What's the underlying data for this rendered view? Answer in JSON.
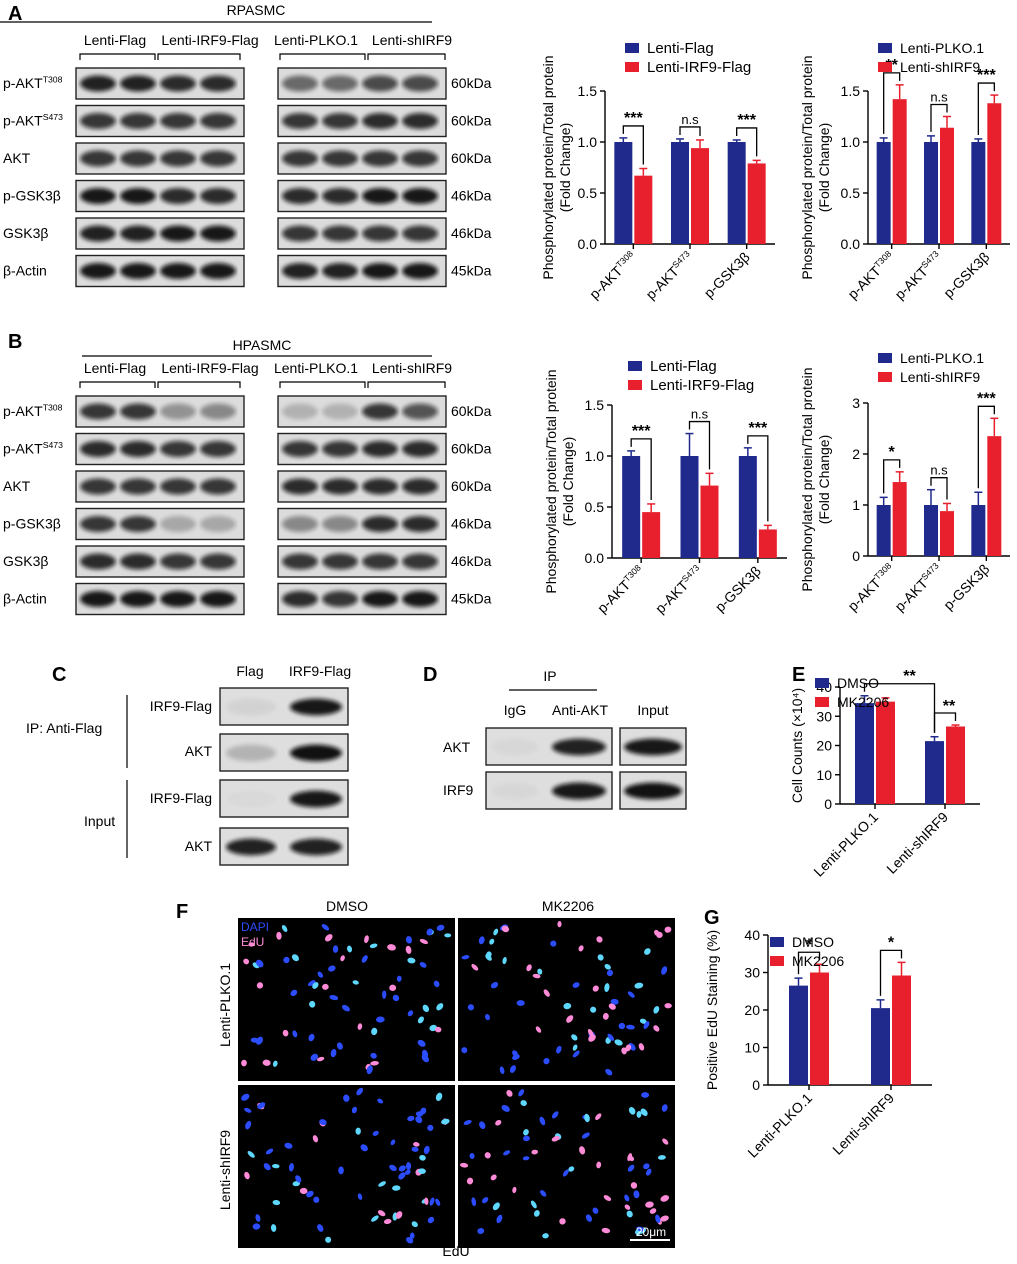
{
  "panels": {
    "A": {
      "letter": "A",
      "cell": "RPASMC",
      "groups": [
        "Lenti-Flag",
        "Lenti-IRF9-Flag",
        "Lenti-PLKO.1",
        "Lenti-shIRF9"
      ]
    },
    "B": {
      "letter": "B",
      "cell": "HPASMC",
      "groups": [
        "Lenti-Flag",
        "Lenti-IRF9-Flag",
        "Lenti-PLKO.1",
        "Lenti-shIRF9"
      ]
    },
    "C": {
      "letter": "C",
      "cols": [
        "Flag",
        "IRF9-Flag"
      ],
      "ip_label": "IP: Anti-Flag",
      "input_label": "Input",
      "rows": [
        "IRF9-Flag",
        "AKT",
        "IRF9-Flag",
        "AKT"
      ]
    },
    "D": {
      "letter": "D",
      "ip": "IP",
      "cols": [
        "IgG",
        "Anti-AKT",
        "Input"
      ],
      "rows": [
        "AKT",
        "IRF9"
      ]
    },
    "E": {
      "letter": "E"
    },
    "F": {
      "letter": "F",
      "cols": [
        "DMSO",
        "MK2206"
      ],
      "rows": [
        "Lenti-PLKO.1",
        "Lenti-shIRF9"
      ],
      "stain1": "DAPI",
      "stain2": "EdU",
      "bottom": "EdU",
      "scale": "20μm"
    },
    "G": {
      "letter": "G"
    }
  },
  "blot_rows": {
    "labels": [
      [
        "p-AKT",
        "T308"
      ],
      [
        "p-AKT",
        "S473"
      ],
      [
        "AKT",
        ""
      ],
      [
        "p-GSK3β",
        ""
      ],
      [
        "GSK3β",
        ""
      ],
      [
        "β-Actin",
        ""
      ]
    ],
    "sizes": [
      "60kDa",
      "60kDa",
      "60kDa",
      "46kDa",
      "46kDa",
      "45kDa"
    ]
  },
  "colors": {
    "blue": "#1f2a8c",
    "red": "#e8202e",
    "dapi": "#2b4dff",
    "edu": "#ff8ad8"
  },
  "chart_data": [
    {
      "id": "A1",
      "type": "bar",
      "ylabel": "Phosphorylated protein/Total protein (Fold Change)",
      "categories": [
        [
          "p-AKT",
          "T308"
        ],
        [
          "p-AKT",
          "S473"
        ],
        [
          "p-GSK3β",
          ""
        ]
      ],
      "ylim": [
        0,
        1.5
      ],
      "ticks": [
        "0.0",
        "0.5",
        "1.0",
        "1.5"
      ],
      "series": [
        {
          "name": "Lenti-Flag",
          "values": [
            1.0,
            1.0,
            1.0
          ],
          "err": [
            0.04,
            0.03,
            0.02
          ]
        },
        {
          "name": "Lenti-IRF9-Flag",
          "values": [
            0.67,
            0.94,
            0.79
          ],
          "err": [
            0.07,
            0.08,
            0.03
          ]
        }
      ],
      "sig": [
        "***",
        "n.s",
        "***"
      ]
    },
    {
      "id": "A2",
      "type": "bar",
      "ylabel": "Phosphorylated protein/Total protein (Fold Change)",
      "categories": [
        [
          "p-AKT",
          "T308"
        ],
        [
          "p-AKT",
          "S473"
        ],
        [
          "p-GSK3β",
          ""
        ]
      ],
      "ylim": [
        0,
        1.5
      ],
      "ticks": [
        "0.0",
        "0.5",
        "1.0",
        "1.5"
      ],
      "series": [
        {
          "name": "Lenti-PLKO.1",
          "values": [
            1.0,
            1.0,
            1.0
          ],
          "err": [
            0.04,
            0.06,
            0.03
          ]
        },
        {
          "name": "Lenti-shIRF9",
          "values": [
            1.42,
            1.14,
            1.38
          ],
          "err": [
            0.14,
            0.11,
            0.08
          ]
        }
      ],
      "sig": [
        "**",
        "n.s",
        "***"
      ]
    },
    {
      "id": "B1",
      "type": "bar",
      "ylabel": "Phosphorylated protein/Total protein (Fold Change)",
      "categories": [
        [
          "p-AKT",
          "T308"
        ],
        [
          "p-AKT",
          "S473"
        ],
        [
          "p-GSK3β",
          ""
        ]
      ],
      "ylim": [
        0,
        1.5
      ],
      "ticks": [
        "0.0",
        "0.5",
        "1.0",
        "1.5"
      ],
      "series": [
        {
          "name": "Lenti-Flag",
          "values": [
            1.0,
            1.0,
            1.0
          ],
          "err": [
            0.05,
            0.22,
            0.08
          ]
        },
        {
          "name": "Lenti-IRF9-Flag",
          "values": [
            0.45,
            0.71,
            0.28
          ],
          "err": [
            0.08,
            0.12,
            0.04
          ]
        }
      ],
      "sig": [
        "***",
        "n.s",
        "***"
      ]
    },
    {
      "id": "B2",
      "type": "bar",
      "ylabel": "Phosphorylated protein/Total protein (Fold Change)",
      "categories": [
        [
          "p-AKT",
          "T308"
        ],
        [
          "p-AKT",
          "S473"
        ],
        [
          "p-GSK3β",
          ""
        ]
      ],
      "ylim": [
        0,
        3
      ],
      "ticks": [
        "0",
        "1",
        "2",
        "3"
      ],
      "series": [
        {
          "name": "Lenti-PLKO.1",
          "values": [
            1.0,
            1.0,
            1.0
          ],
          "err": [
            0.15,
            0.3,
            0.25
          ]
        },
        {
          "name": "Lenti-shIRF9",
          "values": [
            1.45,
            0.88,
            2.35
          ],
          "err": [
            0.2,
            0.15,
            0.35
          ]
        }
      ],
      "sig": [
        "*",
        "n.s",
        "***"
      ]
    },
    {
      "id": "E",
      "type": "bar",
      "ylabel": "Cell Counts (×10⁴)",
      "categories": [
        [
          "Lenti-PLKO.1",
          ""
        ],
        [
          "Lenti-shIRF9",
          ""
        ]
      ],
      "ylim": [
        0,
        40
      ],
      "ticks": [
        "0",
        "10",
        "20",
        "30",
        "40"
      ],
      "series": [
        {
          "name": "DMSO",
          "values": [
            34.5,
            21.5
          ],
          "err": [
            2.5,
            1.5
          ]
        },
        {
          "name": "MK2206",
          "values": [
            35,
            26.5
          ],
          "err": [
            1.3,
            0.5
          ]
        }
      ],
      "sig": [
        "",
        ""
      ],
      "extra": [
        {
          "text": "**",
          "kind": "between"
        },
        {
          "text": "**",
          "kind": "within"
        }
      ]
    },
    {
      "id": "G",
      "type": "bar",
      "ylabel": "Positive EdU Staining (%)",
      "categories": [
        [
          "Lenti-PLKO.1",
          ""
        ],
        [
          "Lenti-shIRF9",
          ""
        ]
      ],
      "ylim": [
        0,
        40
      ],
      "ticks": [
        "0",
        "10",
        "20",
        "30",
        "40"
      ],
      "series": [
        {
          "name": "DMSO",
          "values": [
            26.5,
            20.5
          ],
          "err": [
            2,
            2.2
          ]
        },
        {
          "name": "MK2206",
          "values": [
            30,
            29.2
          ],
          "err": [
            2.2,
            3.5
          ]
        }
      ],
      "sig": [
        "*",
        "*"
      ]
    }
  ]
}
